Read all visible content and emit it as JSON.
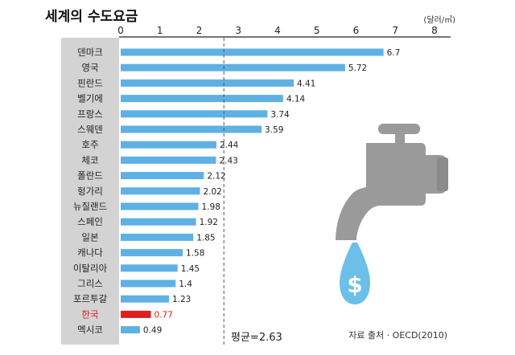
{
  "chart_data": {
    "type": "bar",
    "orientation": "horizontal",
    "title": "세계의 수도요금",
    "unit": "(달러/㎥)",
    "xlim": [
      0,
      8
    ],
    "xticks": [
      "0",
      "1",
      "2",
      "3",
      "4",
      "5",
      "6",
      "7",
      "8"
    ],
    "categories": [
      "덴마크",
      "영국",
      "핀란드",
      "벨기에",
      "프랑스",
      "스웨덴",
      "호주",
      "체코",
      "폴란드",
      "헝가리",
      "뉴질랜드",
      "스페인",
      "일본",
      "캐나다",
      "이탈리아",
      "그리스",
      "포르투갈",
      "한국",
      "멕시코"
    ],
    "values": [
      6.7,
      5.72,
      4.41,
      4.14,
      3.74,
      3.59,
      2.44,
      2.43,
      2.12,
      2.02,
      1.98,
      1.92,
      1.85,
      1.58,
      1.45,
      1.4,
      1.23,
      0.77,
      0.49
    ],
    "value_labels": [
      "6.7",
      "5.72",
      "4.41",
      "4.14",
      "3.74",
      "3.59",
      "2.44",
      "2.43",
      "2.12",
      "2.02",
      "1.98",
      "1.92",
      "1.85",
      "1.58",
      "1.45",
      "1.4",
      "1.23",
      "0.77",
      "0.49"
    ],
    "highlight_category": "한국",
    "average": 2.63,
    "average_label": "평균=2.63",
    "source": "자료 출처 · OECD(2010)",
    "grid": false
  },
  "colors": {
    "bar": "#5fb0e3",
    "highlight_bar": "#e01e1e",
    "highlight_text": "#d22020",
    "label_panel": "#d3d3d3",
    "faucet": "#9a9a9a",
    "drop": "#6bbfe8",
    "average_line": "#555555"
  },
  "icons": {
    "faucet": "faucet-icon",
    "drop": "water-drop-dollar-icon"
  }
}
